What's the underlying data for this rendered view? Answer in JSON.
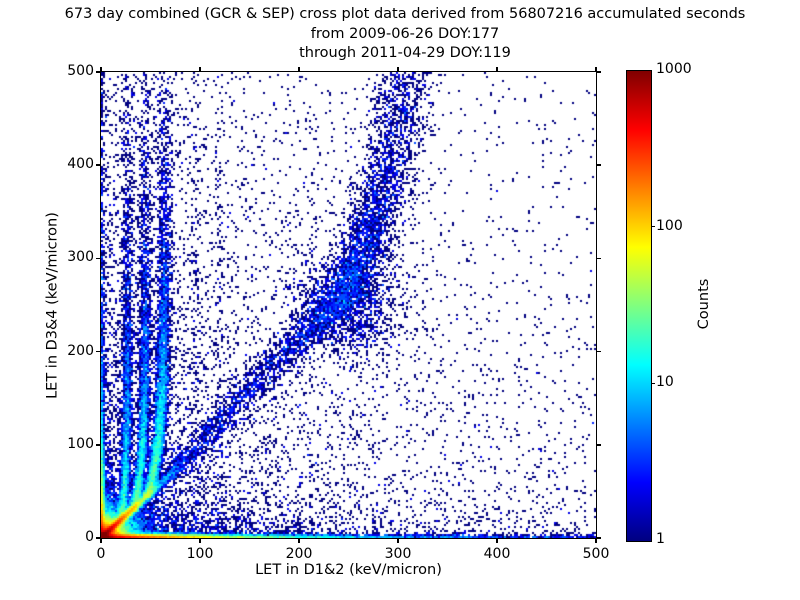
{
  "title": {
    "line1": "673 day combined (GCR & SEP) cross plot data derived from 56807216 accumulated seconds",
    "line2": "from 2009-06-26 DOY:177",
    "line3": "through 2011-04-29 DOY:119"
  },
  "axes": {
    "xlabel": "LET in D1&2 (keV/micron)",
    "ylabel": "LET in D3&4 (keV/micron)",
    "xlim": [
      0,
      500
    ],
    "ylim": [
      0,
      500
    ],
    "x_ticks": [
      0,
      100,
      200,
      300,
      400,
      500
    ],
    "y_ticks": [
      0,
      100,
      200,
      300,
      400,
      500
    ]
  },
  "colorbar": {
    "label": "Counts",
    "scale": "log",
    "range": [
      1,
      1000
    ],
    "ticks": [
      {
        "label": "1000",
        "frac": 1.0,
        "mark": false
      },
      {
        "label": "100",
        "frac": 0.6667,
        "mark": true
      },
      {
        "label": "10",
        "frac": 0.3333,
        "mark": true
      },
      {
        "label": "1",
        "frac": 0.0,
        "mark": false
      }
    ],
    "gradient": [
      {
        "frac": 0.0,
        "color": "#000080"
      },
      {
        "frac": 0.125,
        "color": "#0000ff"
      },
      {
        "frac": 0.375,
        "color": "#00ffff"
      },
      {
        "frac": 0.625,
        "color": "#ffff00"
      },
      {
        "frac": 0.875,
        "color": "#ff0000"
      },
      {
        "frac": 1.0,
        "color": "#800000"
      }
    ]
  },
  "chart_data": {
    "type": "heatmap",
    "subtype": "2d-histogram-cross-plot",
    "title": "673 day combined (GCR & SEP) cross plot data derived from 56807216 accumulated seconds from 2009-06-26 DOY:177 through 2011-04-29 DOY:119",
    "xlabel": "LET in D1&2 (keV/micron)",
    "ylabel": "LET in D3&4 (keV/micron)",
    "zlabel": "Counts",
    "xlim": [
      0,
      500
    ],
    "ylim": [
      0,
      500
    ],
    "count_range": [
      1,
      1000
    ],
    "colormap": "jet",
    "count_scale": "log10",
    "accumulated_seconds": 56807216,
    "days": 673,
    "start": "2009-06-26 DOY:177",
    "end": "2011-04-29 DOY:119",
    "features": [
      "intense hot spot (~1000 counts, dark red) at origin below ~10 keV/micron on both axes",
      "bright red-to-yellow ridge along y=x from origin fading to cyan near (70,70)",
      "dense orange strip along the x axis (y~0) out to x~90, fading through cyan to dark blue at x=500",
      "dense strip along the y axis (x~0) for all y, cyan near bottom fading to sparse blue at top",
      "several cyan finger-like tracks branching off the diagonal near (25,25)-(64,64) that curve upward and become vertical",
      "faint vertical speckle stripes near x=45, 95 and 120 extending to y=500",
      "broad diffuse blue band along the diagonal from (70,70) to about (260,300), densest near (245,260), curving upward to a near-vertical band around x=300-320 reaching y=500",
      "sparse single-count (dark navy) background speckle, denser at low x and low y, nearly empty in the upper right"
    ],
    "generation": {
      "seed": 7,
      "bins_x": 248,
      "bins_y": 233,
      "xmax": 500,
      "ymax": 500,
      "count_max": 1000,
      "components": {
        "origin_blob": {
          "amp": 1500,
          "scale": 5.5,
          "halo_amp": 40,
          "halo_scale": 14,
          "x_stretch": 1.15
        },
        "diag_ridge": {
          "amp": 1000,
          "decay": 13,
          "slope": 0.97,
          "sigma0": 2.2,
          "sigma_grow": 35
        },
        "bottom_row": {
          "terms": [
            [
              600,
              45
            ],
            [
              35,
              160
            ],
            [
              2.5,
              500
            ]
          ],
          "sigma_y": 2.0
        },
        "left_col": {
          "terms": [
            [
              250,
              30
            ],
            [
              12,
              130
            ],
            [
              1.8,
              600
            ]
          ],
          "sigma_x": 1.8
        },
        "fingers": [
          {
            "xk": 27,
            "amp": 20,
            "rise": 50,
            "decay": 95,
            "sigma": 2.2,
            "tail": 0.12
          },
          {
            "xk": 45,
            "amp": 26,
            "rise": 55,
            "decay": 95,
            "sigma": 2.3,
            "tail": 0.12
          },
          {
            "xk": 64,
            "amp": 30,
            "rise": 60,
            "decay": 100,
            "sigma": 2.6,
            "tail": 0.08
          }
        ],
        "stripes": [
          {
            "x": 95,
            "amp": 0.35,
            "decay": 260,
            "sigma": 2.5,
            "base": 0.05
          },
          {
            "x": 120,
            "amp": 0.28,
            "decay": 280,
            "sigma": 2.5,
            "base": 0.05
          }
        ],
        "band": {
          "points": [
            [
              72,
              74
            ],
            [
              120,
              126
            ],
            [
              170,
              180
            ],
            [
              215,
              228
            ],
            [
              245,
              262
            ],
            [
              262,
              300
            ],
            [
              278,
              350
            ],
            [
              292,
              405
            ],
            [
              303,
              460
            ],
            [
              310,
              500
            ]
          ],
          "width0": 7,
          "width1": 16,
          "amp_profile": [
            1.1,
            1.2,
            1.4,
            1.8,
            2.2,
            2.1,
            1.6,
            1.2,
            0.9,
            0.75
          ],
          "blob": {
            "x": 248,
            "y": 252,
            "sx": 26,
            "sy": 30,
            "amp": 1.3
          }
        },
        "background": {
          "terms": [
            [
              0.45,
              130,
              300
            ],
            [
              0.28,
              350,
              60
            ],
            [
              0.05,
              450,
              450
            ],
            [
              3.5,
              150,
              9
            ],
            [
              2.2,
              9,
              120
            ]
          ],
          "uniform": 0.012
        }
      }
    }
  }
}
